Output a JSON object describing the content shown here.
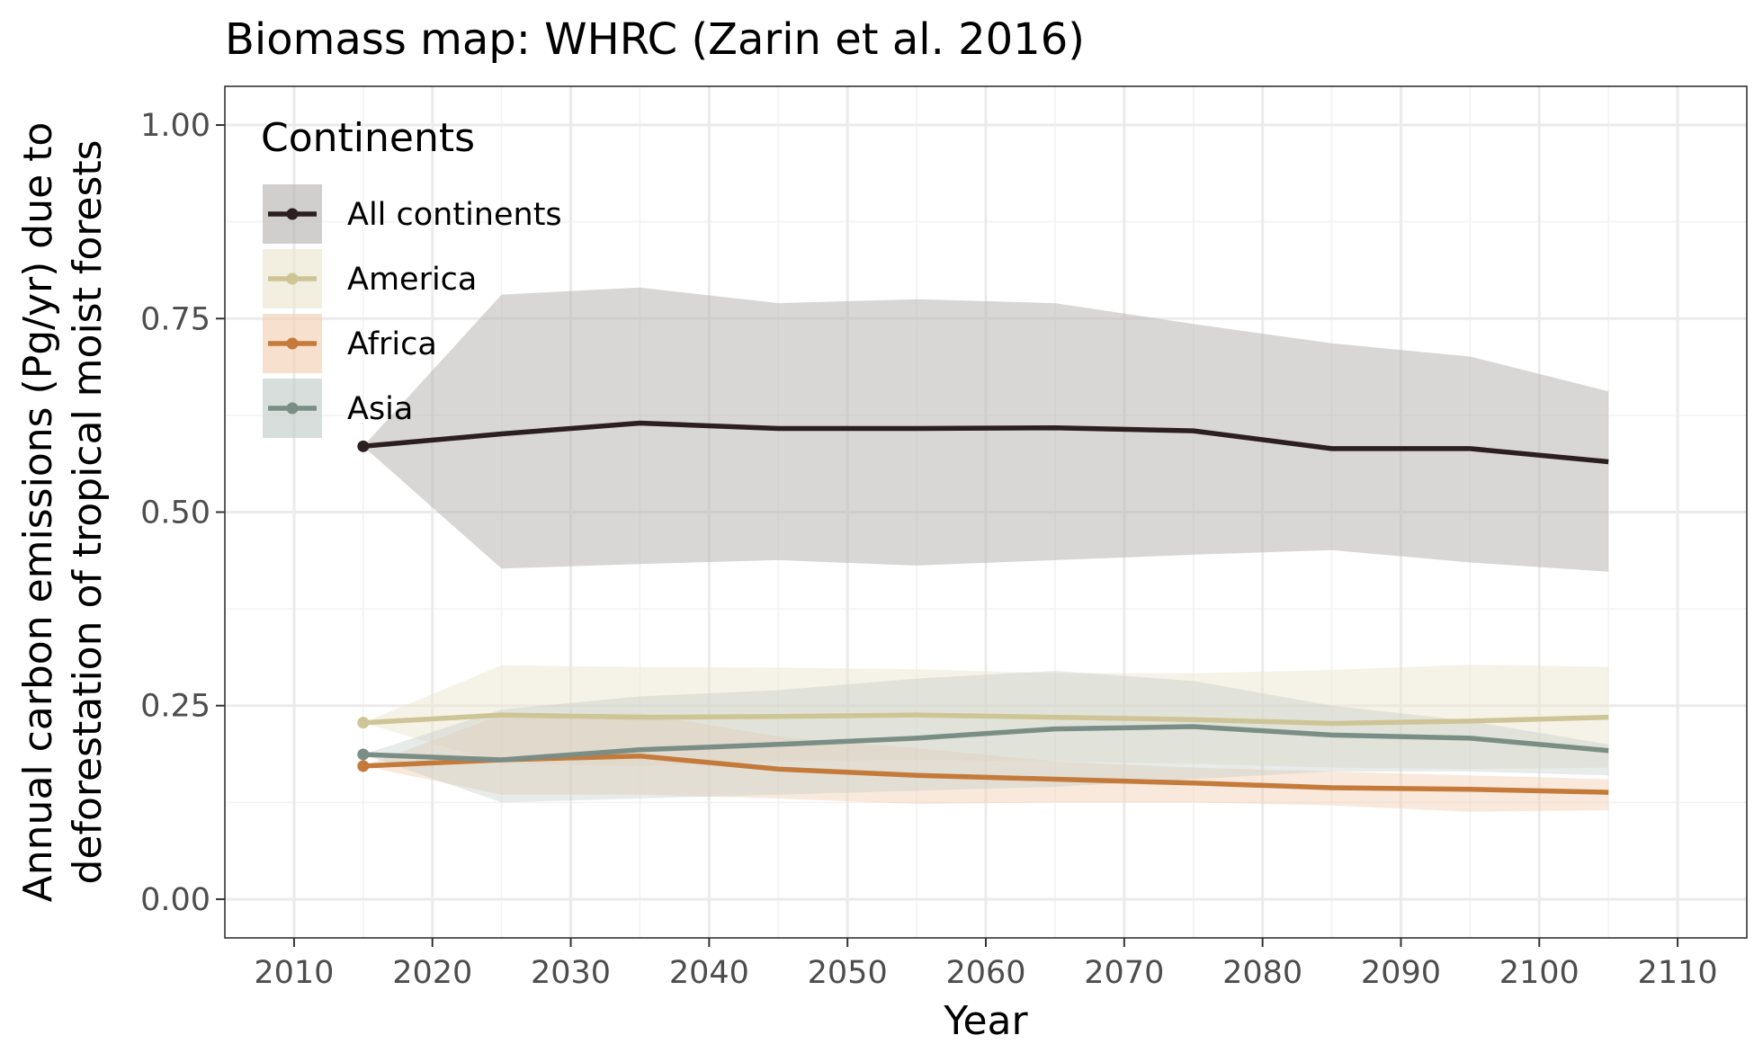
{
  "chart_data": {
    "type": "line",
    "title": "Biomass map: WHRC (Zarin et al. 2016)",
    "xlabel": "Year",
    "ylabel": "Annual carbon emissions (Pg/yr) due to deforestation of tropical moist forests",
    "ylabel_lines": [
      "Annual carbon emissions (Pg/yr) due to",
      "deforestation of tropical moist forests"
    ],
    "xlim": [
      2005,
      2115
    ],
    "ylim": [
      -0.05,
      1.05
    ],
    "xticks": [
      2010,
      2020,
      2030,
      2040,
      2050,
      2060,
      2070,
      2080,
      2090,
      2100,
      2110
    ],
    "yticks": [
      0.0,
      0.25,
      0.5,
      0.75,
      1.0
    ],
    "ytick_labels": [
      "0.00",
      "0.25",
      "0.50",
      "0.75",
      "1.00"
    ],
    "grid": true,
    "legend": {
      "title": "Continents",
      "placement": "top-left"
    },
    "x": [
      2015,
      2025,
      2035,
      2045,
      2055,
      2065,
      2075,
      2085,
      2095,
      2105
    ],
    "series": [
      {
        "name": "All continents",
        "color": "#2b1f1f",
        "band_color": "#b8b6b4",
        "values": [
          0.585,
          0.601,
          0.615,
          0.608,
          0.608,
          0.609,
          0.605,
          0.582,
          0.582,
          0.565
        ],
        "lower": [
          0.585,
          0.427,
          0.433,
          0.438,
          0.431,
          0.438,
          0.445,
          0.451,
          0.435,
          0.423
        ],
        "upper": [
          0.585,
          0.781,
          0.79,
          0.77,
          0.775,
          0.77,
          0.743,
          0.718,
          0.701,
          0.656
        ]
      },
      {
        "name": "America",
        "color": "#cdc596",
        "band_color": "#ebe6d0",
        "values": [
          0.228,
          0.238,
          0.235,
          0.236,
          0.238,
          0.235,
          0.232,
          0.227,
          0.23,
          0.235
        ],
        "lower": [
          0.228,
          0.175,
          0.172,
          0.178,
          0.18,
          0.178,
          0.175,
          0.17,
          0.168,
          0.17
        ],
        "upper": [
          0.228,
          0.302,
          0.3,
          0.299,
          0.297,
          0.292,
          0.292,
          0.296,
          0.303,
          0.3
        ]
      },
      {
        "name": "Africa",
        "color": "#c47a3a",
        "band_color": "#f2cfb2",
        "values": [
          0.172,
          0.18,
          0.185,
          0.168,
          0.16,
          0.155,
          0.15,
          0.144,
          0.142,
          0.138
        ],
        "lower": [
          0.172,
          0.135,
          0.135,
          0.13,
          0.123,
          0.125,
          0.125,
          0.121,
          0.113,
          0.115
        ],
        "upper": [
          0.172,
          0.238,
          0.24,
          0.21,
          0.195,
          0.178,
          0.17,
          0.165,
          0.16,
          0.155
        ]
      },
      {
        "name": "Asia",
        "color": "#7a8e86",
        "band_color": "#c3ccc8",
        "values": [
          0.187,
          0.18,
          0.193,
          0.2,
          0.208,
          0.22,
          0.223,
          0.212,
          0.208,
          0.192
        ],
        "lower": [
          0.187,
          0.125,
          0.13,
          0.135,
          0.14,
          0.145,
          0.155,
          0.165,
          0.165,
          0.16
        ],
        "upper": [
          0.187,
          0.245,
          0.262,
          0.27,
          0.285,
          0.295,
          0.282,
          0.25,
          0.23,
          0.2
        ]
      }
    ]
  }
}
